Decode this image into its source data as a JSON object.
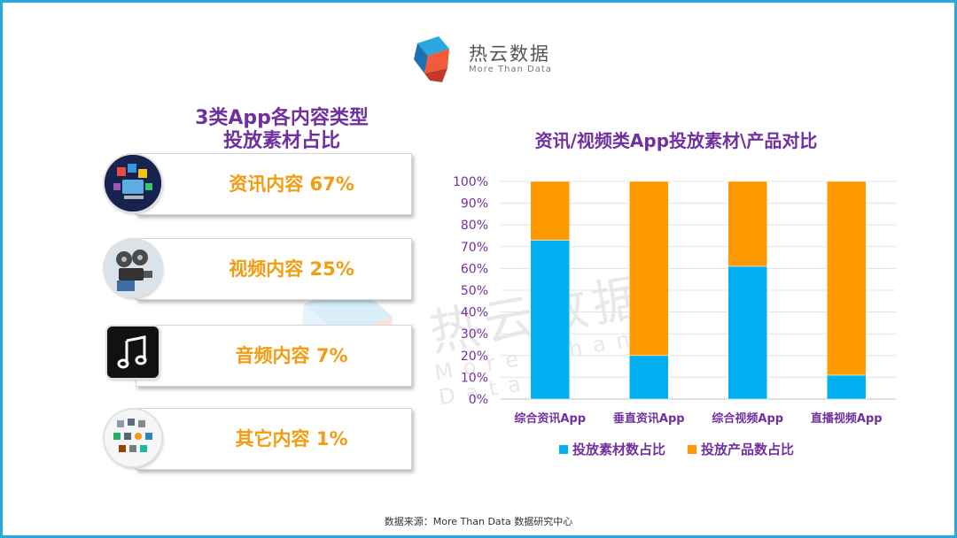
{
  "brand": {
    "name": "热云数据",
    "tagline": "More Than Data",
    "primary_color": "#29a8e0"
  },
  "left_panel": {
    "title_line1": "3类App各内容类型",
    "title_line2": "投放素材占比",
    "items": [
      {
        "label": "资讯内容 67%",
        "icon": "news-media-icon"
      },
      {
        "label": "视频内容 25%",
        "icon": "film-projector-icon"
      },
      {
        "label": "音频内容  7%",
        "icon": "music-note-icon"
      },
      {
        "label": "其它内容 1%",
        "icon": "assorted-apps-icon"
      }
    ]
  },
  "chart": {
    "title": "资讯/视频类App投放素材\\产品对比"
  },
  "chart_data": {
    "type": "bar",
    "stacked": true,
    "title": "资讯/视频类App投放素材\\产品对比",
    "categories": [
      "综合资讯App",
      "垂直资讯App",
      "综合视频App",
      "直播视频App"
    ],
    "series": [
      {
        "name": "投放素材数占比",
        "color": "#00b0f0",
        "values": [
          73,
          20,
          61,
          11
        ]
      },
      {
        "name": "投放产品数占比",
        "color": "#ff9900",
        "values": [
          27,
          80,
          39,
          89
        ]
      }
    ],
    "ylim": [
      0,
      100
    ],
    "yticks": [
      "0%",
      "10%",
      "20%",
      "30%",
      "40%",
      "50%",
      "60%",
      "70%",
      "80%",
      "90%",
      "100%"
    ],
    "grid": true,
    "legend": "bottom"
  },
  "watermark": {
    "text": "热云数据",
    "sub": "More Than Data"
  },
  "footer": {
    "source": "数据来源：More  Than  Data  数据研究中心"
  }
}
